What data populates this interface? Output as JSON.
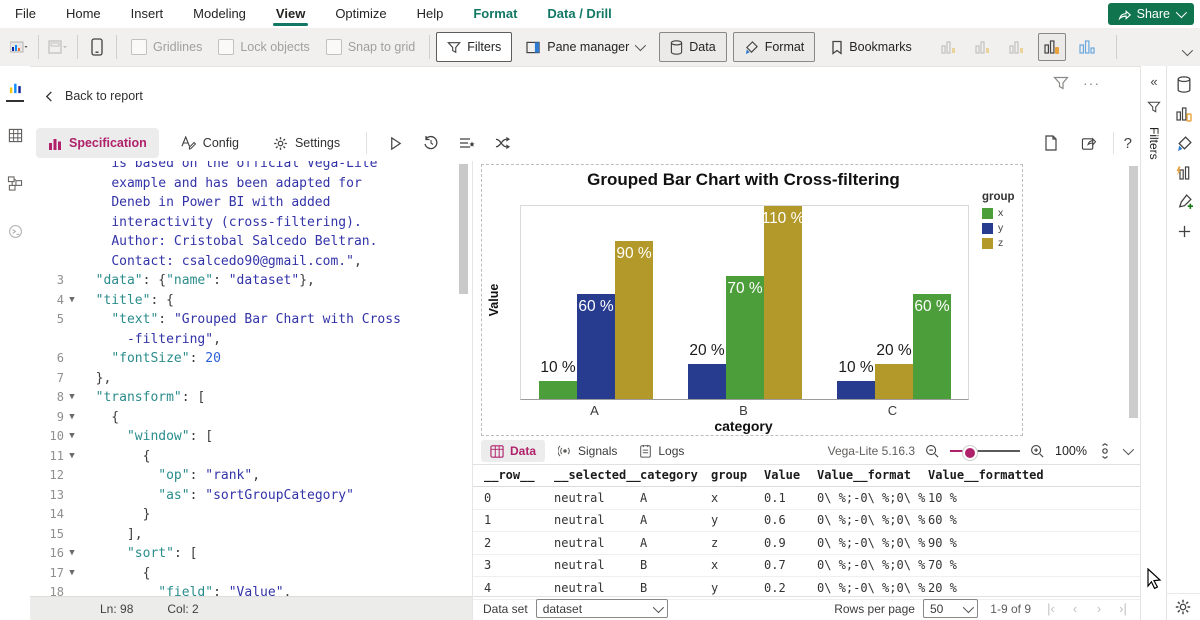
{
  "menu": {
    "items": [
      {
        "label": "File",
        "style": "plain"
      },
      {
        "label": "Home",
        "style": "plain"
      },
      {
        "label": "Insert",
        "style": "plain"
      },
      {
        "label": "Modeling",
        "style": "plain"
      },
      {
        "label": "View",
        "style": "active"
      },
      {
        "label": "Optimize",
        "style": "plain"
      },
      {
        "label": "Help",
        "style": "plain"
      },
      {
        "label": "Format",
        "style": "green"
      },
      {
        "label": "Data / Drill",
        "style": "green"
      }
    ],
    "share_label": "Share",
    "accent_green": "#117865"
  },
  "ribbon": {
    "checkboxes": [
      {
        "label": "Gridlines"
      },
      {
        "label": "Lock objects"
      },
      {
        "label": "Snap to grid"
      }
    ],
    "filters_label": "Filters",
    "pane_manager_label": "Pane manager",
    "data_label": "Data",
    "format_label": "Format",
    "bookmarks_label": "Bookmarks",
    "tail_icons": [
      {
        "name": "selection-icon",
        "state": "disabled"
      },
      {
        "name": "interactions-icon",
        "state": "disabled"
      },
      {
        "name": "sync-slicers-icon",
        "state": "disabled"
      },
      {
        "name": "build-pane-toggle-icon",
        "state": "pressed"
      },
      {
        "name": "format-pane-toggle-icon",
        "state": "normal"
      }
    ]
  },
  "left_strip": [
    {
      "name": "report-view",
      "active": true
    },
    {
      "name": "table-view",
      "active": false
    },
    {
      "name": "model-view",
      "active": false
    },
    {
      "name": "dax-query-view",
      "active": false
    }
  ],
  "editor": {
    "back_label": "Back to report",
    "tabs": [
      {
        "label": "Specification",
        "icon": "spec-bars-icon",
        "active": true
      },
      {
        "label": "Config",
        "icon": "config-pen-icon",
        "active": false
      },
      {
        "label": "Settings",
        "icon": "gear-icon",
        "active": false
      }
    ],
    "status": {
      "line": "Ln: 98",
      "col": "Col: 2"
    },
    "code_lines": [
      {
        "n": "",
        "fold": false,
        "segs": [
          [
            "p",
            "    "
          ],
          [
            "s",
            "is based on the official Vega-Lite"
          ]
        ]
      },
      {
        "n": "",
        "fold": false,
        "segs": [
          [
            "p",
            "    "
          ],
          [
            "s",
            "example and has been adapted for"
          ]
        ]
      },
      {
        "n": "",
        "fold": false,
        "segs": [
          [
            "p",
            "    "
          ],
          [
            "s",
            "Deneb in Power BI with added"
          ]
        ]
      },
      {
        "n": "",
        "fold": false,
        "segs": [
          [
            "p",
            "    "
          ],
          [
            "s",
            "interactivity (cross-filtering)."
          ]
        ]
      },
      {
        "n": "",
        "fold": false,
        "segs": [
          [
            "p",
            "    "
          ],
          [
            "s",
            "Author: Cristobal Salcedo Beltran."
          ]
        ]
      },
      {
        "n": "",
        "fold": false,
        "segs": [
          [
            "p",
            "    "
          ],
          [
            "s",
            "Contact: csalcedo90@gmail.com.\""
          ],
          [
            "p",
            ","
          ]
        ]
      },
      {
        "n": "3",
        "fold": false,
        "segs": [
          [
            "p",
            "  "
          ],
          [
            "k",
            "\"data\""
          ],
          [
            "p",
            ": {"
          ],
          [
            "k",
            "\"name\""
          ],
          [
            "p",
            ": "
          ],
          [
            "s",
            "\"dataset\""
          ],
          [
            "p",
            "},"
          ]
        ]
      },
      {
        "n": "4",
        "fold": true,
        "segs": [
          [
            "p",
            "  "
          ],
          [
            "k",
            "\"title\""
          ],
          [
            "p",
            ": {"
          ]
        ]
      },
      {
        "n": "5",
        "fold": false,
        "segs": [
          [
            "p",
            "    "
          ],
          [
            "k",
            "\"text\""
          ],
          [
            "p",
            ": "
          ],
          [
            "s",
            "\"Grouped Bar Chart with Cross"
          ]
        ]
      },
      {
        "n": "",
        "fold": false,
        "segs": [
          [
            "p",
            "      "
          ],
          [
            "s",
            "-filtering\""
          ],
          [
            "p",
            ","
          ]
        ]
      },
      {
        "n": "6",
        "fold": false,
        "segs": [
          [
            "p",
            "    "
          ],
          [
            "k",
            "\"fontSize\""
          ],
          [
            "p",
            ": "
          ],
          [
            "n",
            "20"
          ]
        ]
      },
      {
        "n": "7",
        "fold": false,
        "segs": [
          [
            "p",
            "  },"
          ]
        ]
      },
      {
        "n": "8",
        "fold": true,
        "segs": [
          [
            "p",
            "  "
          ],
          [
            "k",
            "\"transform\""
          ],
          [
            "p",
            ": ["
          ]
        ]
      },
      {
        "n": "9",
        "fold": true,
        "segs": [
          [
            "p",
            "    {"
          ]
        ]
      },
      {
        "n": "10",
        "fold": true,
        "segs": [
          [
            "p",
            "      "
          ],
          [
            "k",
            "\"window\""
          ],
          [
            "p",
            ": ["
          ]
        ]
      },
      {
        "n": "11",
        "fold": true,
        "segs": [
          [
            "p",
            "        {"
          ]
        ]
      },
      {
        "n": "12",
        "fold": false,
        "segs": [
          [
            "p",
            "          "
          ],
          [
            "k",
            "\"op\""
          ],
          [
            "p",
            ": "
          ],
          [
            "s",
            "\"rank\""
          ],
          [
            "p",
            ","
          ]
        ]
      },
      {
        "n": "13",
        "fold": false,
        "segs": [
          [
            "p",
            "          "
          ],
          [
            "k",
            "\"as\""
          ],
          [
            "p",
            ": "
          ],
          [
            "s",
            "\"sortGroupCategory\""
          ]
        ]
      },
      {
        "n": "14",
        "fold": false,
        "segs": [
          [
            "p",
            "        }"
          ]
        ]
      },
      {
        "n": "15",
        "fold": false,
        "segs": [
          [
            "p",
            "      ],"
          ]
        ]
      },
      {
        "n": "16",
        "fold": true,
        "segs": [
          [
            "p",
            "      "
          ],
          [
            "k",
            "\"sort\""
          ],
          [
            "p",
            ": ["
          ]
        ]
      },
      {
        "n": "17",
        "fold": true,
        "segs": [
          [
            "p",
            "        {"
          ]
        ]
      },
      {
        "n": "18",
        "fold": false,
        "segs": [
          [
            "p",
            "          "
          ],
          [
            "k",
            "\"field\""
          ],
          [
            "p",
            ": "
          ],
          [
            "s",
            "\"Value\""
          ],
          [
            "p",
            ","
          ]
        ]
      }
    ]
  },
  "chart_data": {
    "type": "bar",
    "title": "Grouped Bar Chart with Cross-filtering",
    "xlabel": "category",
    "ylabel": "Value",
    "categories": [
      "A",
      "B",
      "C"
    ],
    "series": [
      {
        "name": "x",
        "color": "#4C9E3A",
        "values": [
          0.1,
          0.7,
          0.6
        ]
      },
      {
        "name": "y",
        "color": "#273C8F",
        "values": [
          0.6,
          0.2,
          0.1
        ]
      },
      {
        "name": "z",
        "color": "#B3982A",
        "values": [
          0.9,
          1.1,
          0.2
        ]
      }
    ],
    "label_format": "percent",
    "legend_title": "group",
    "legend_position": "right",
    "ylim": [
      0,
      1.1
    ],
    "grid": false,
    "bar_sort": "ascending-within-group",
    "label_rule": "white inside bar when value >= 0.6, black above bar otherwise"
  },
  "debug": {
    "tabs": [
      {
        "label": "Data",
        "icon": "data-grid-icon",
        "active": true
      },
      {
        "label": "Signals",
        "icon": "signals-icon",
        "active": false
      },
      {
        "label": "Logs",
        "icon": "logs-icon",
        "active": false
      }
    ],
    "engine": "Vega-Lite 5.16.3",
    "zoom_level": "100%",
    "table": {
      "columns": [
        "__row__",
        "__selected__",
        "category",
        "group",
        "Value",
        "Value__format",
        "Value__formatted"
      ],
      "rows": [
        [
          "0",
          "neutral",
          "A",
          "x",
          "0.1",
          "0\\ %;-0\\ %;0\\ %",
          "10 %"
        ],
        [
          "1",
          "neutral",
          "A",
          "y",
          "0.6",
          "0\\ %;-0\\ %;0\\ %",
          "60 %"
        ],
        [
          "2",
          "neutral",
          "A",
          "z",
          "0.9",
          "0\\ %;-0\\ %;0\\ %",
          "90 %"
        ],
        [
          "3",
          "neutral",
          "B",
          "x",
          "0.7",
          "0\\ %;-0\\ %;0\\ %",
          "70 %"
        ],
        [
          "4",
          "neutral",
          "B",
          "y",
          "0.2",
          "0\\ %;-0\\ %;0\\ %",
          "20 %"
        ]
      ]
    },
    "footer": {
      "dataset_label": "Data set",
      "dataset_value": "dataset",
      "rows_per_page_label": "Rows per page",
      "rows_per_page_value": "50",
      "range": "1-9 of 9"
    }
  },
  "filters_panel": {
    "label": "Filters"
  },
  "right_strip": [
    {
      "name": "data-pane"
    },
    {
      "name": "build-visual-pane"
    },
    {
      "name": "format-visual-pane"
    },
    {
      "name": "analytics-pane"
    },
    {
      "name": "add-visual-pane"
    },
    {
      "name": "more-panes"
    }
  ],
  "colors": {
    "deneb_accent": "#B0216B",
    "pbi_green": "#117865",
    "share_button": "#10744E"
  }
}
